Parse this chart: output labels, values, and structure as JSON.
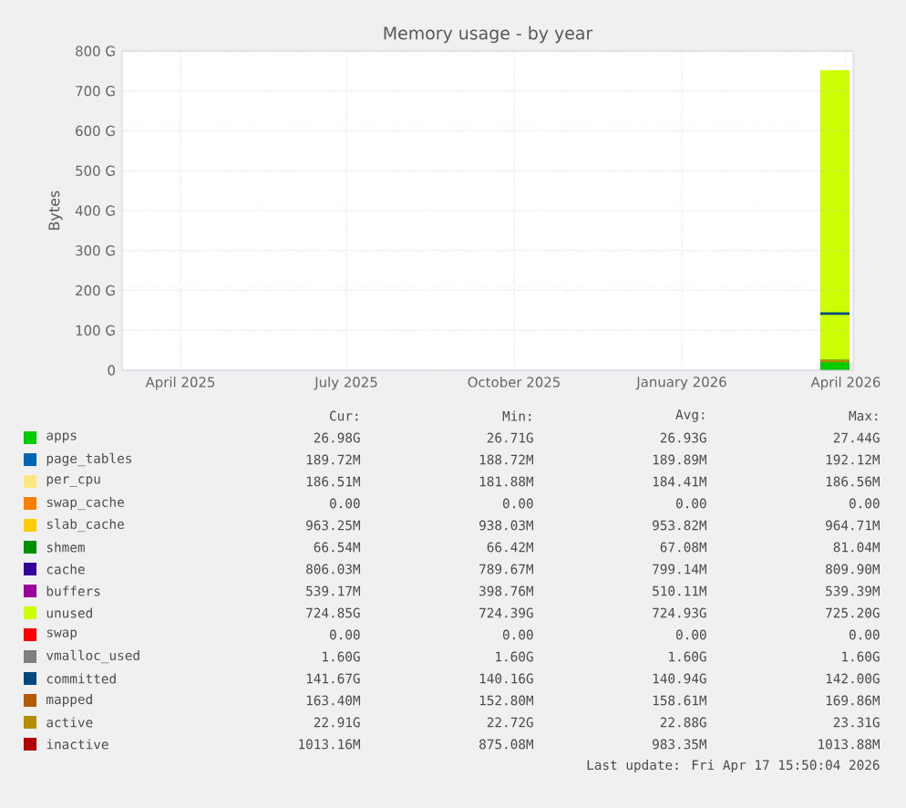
{
  "chart_data": {
    "type": "area",
    "stacked": true,
    "title": "Memory usage - by year",
    "ylabel": "Bytes",
    "xlim": [
      "2025-03-14",
      "2026-04-19"
    ],
    "ylim": [
      0,
      800
    ],
    "xticks": [
      {
        "value": "2025-04-15",
        "label": "April 2025"
      },
      {
        "value": "2025-07-15",
        "label": "July 2025"
      },
      {
        "value": "2025-10-15",
        "label": "October 2025"
      },
      {
        "value": "2026-01-15",
        "label": "January 2026"
      },
      {
        "value": "2026-04-15",
        "label": "April 2026"
      }
    ],
    "yticks": [
      0,
      {
        "value": 100,
        "label": "100 G"
      },
      {
        "value": 200,
        "label": "200 G"
      },
      {
        "value": 300,
        "label": "300 G"
      },
      {
        "value": 400,
        "label": "400 G"
      },
      {
        "value": 500,
        "label": "500 G"
      },
      {
        "value": 600,
        "label": "600 G"
      },
      {
        "value": 700,
        "label": "700 G"
      },
      {
        "value": 800,
        "label": "800 G"
      }
    ],
    "grid": true,
    "legend": "bottom",
    "x": [
      "2026-04-01",
      "2026-04-17"
    ],
    "series": [
      {
        "name": "apps",
        "color": "#00cc00",
        "values": [
          27,
          27
        ]
      },
      {
        "name": "page_tables",
        "color": "#0066b3",
        "values": [
          null,
          null
        ]
      },
      {
        "name": "per_cpu",
        "color": "#ffe680",
        "values": [
          null,
          null
        ]
      },
      {
        "name": "swap_cache",
        "color": "#ff8000",
        "values": [
          null,
          null
        ]
      },
      {
        "name": "slab_cache",
        "color": "#ffcc00",
        "values": [
          null,
          null
        ]
      },
      {
        "name": "shmem",
        "color": "#008f00",
        "values": [
          null,
          null
        ]
      },
      {
        "name": "cache",
        "color": "#330099",
        "values": [
          null,
          null
        ]
      },
      {
        "name": "buffers",
        "color": "#990099",
        "values": [
          null,
          null
        ]
      },
      {
        "name": "unused",
        "color": "#ccff00",
        "values": [
          725,
          725
        ]
      },
      {
        "name": "swap",
        "color": "#ff0000",
        "values": [
          null,
          null
        ]
      },
      {
        "name": "vmalloc_used",
        "type": "line",
        "color": "#808080",
        "values": [
          null,
          null
        ]
      },
      {
        "name": "committed",
        "type": "line",
        "color": "#00487d",
        "values": [
          142,
          142
        ]
      },
      {
        "name": "mapped",
        "type": "line",
        "color": "#b35a00",
        "values": [
          null,
          null
        ]
      },
      {
        "name": "active",
        "type": "line",
        "color": "#b38f00",
        "values": [
          23,
          23
        ]
      },
      {
        "name": "inactive",
        "type": "line",
        "color": "#b30000",
        "values": [
          null,
          null
        ]
      }
    ],
    "annotations": [
      "Cur:",
      "Min:",
      "Avg:",
      "Max:",
      "26.98G",
      "26.71G",
      "26.93G",
      "27.44G",
      "189.72M",
      "188.72M",
      "189.89M",
      "192.12M",
      "186.51M",
      "181.88M",
      "184.41M",
      "186.56M",
      "0.00",
      "0.00",
      "0.00",
      "0.00",
      "963.25M",
      "938.03M",
      "953.82M",
      "964.71M",
      "66.54M",
      "66.42M",
      "67.08M",
      "81.04M",
      "806.03M",
      "789.67M",
      "799.14M",
      "809.90M",
      "539.17M",
      "398.76M",
      "510.11M",
      "539.39M",
      "724.85G",
      "724.39G",
      "724.93G",
      "725.20G",
      "0.00",
      "0.00",
      "0.00",
      "0.00",
      "1.60G",
      "1.60G",
      "1.60G",
      "1.60G",
      "141.67G",
      "140.16G",
      "140.94G",
      "142.00G",
      "163.40M",
      "152.80M",
      "158.61M",
      "169.86M",
      "22.91G",
      "22.72G",
      "22.88G",
      "23.31G",
      "1013.16M",
      "875.08M",
      "983.35M",
      "1013.88M",
      "Last update: Fri Apr 17 15:50:04 2026"
    ]
  }
}
